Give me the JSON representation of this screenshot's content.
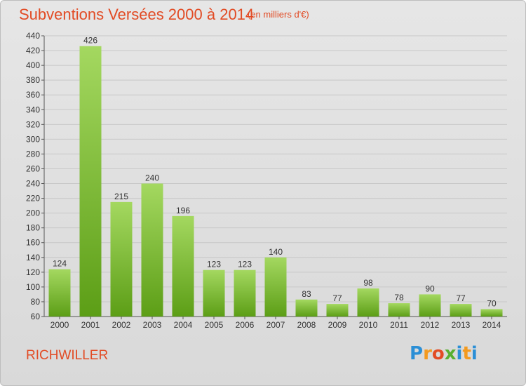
{
  "title": "Subventions Versées 2000 à 2014",
  "subtitle": "(en milliers d'€)",
  "commune": "RICHWILLER",
  "logo": {
    "letters": [
      "P",
      "r",
      "o",
      "x",
      "i",
      "t",
      "i"
    ]
  },
  "colors": {
    "title": "#e24b24",
    "bar_top": "#a4d860",
    "bar_bottom": "#5c9e16",
    "grid": "#c8c8c8"
  },
  "chart_data": {
    "type": "bar",
    "categories": [
      "2000",
      "2001",
      "2002",
      "2003",
      "2004",
      "2005",
      "2006",
      "2007",
      "2008",
      "2009",
      "2010",
      "2011",
      "2012",
      "2013",
      "2014"
    ],
    "values": [
      124,
      426,
      215,
      240,
      196,
      123,
      123,
      140,
      83,
      77,
      98,
      78,
      90,
      77,
      70
    ],
    "ylim": [
      60,
      440
    ],
    "yticks": [
      60,
      80,
      100,
      120,
      140,
      160,
      180,
      200,
      220,
      240,
      260,
      280,
      300,
      320,
      340,
      360,
      380,
      400,
      420,
      440
    ],
    "grid": true,
    "xlabel": "",
    "ylabel": ""
  }
}
